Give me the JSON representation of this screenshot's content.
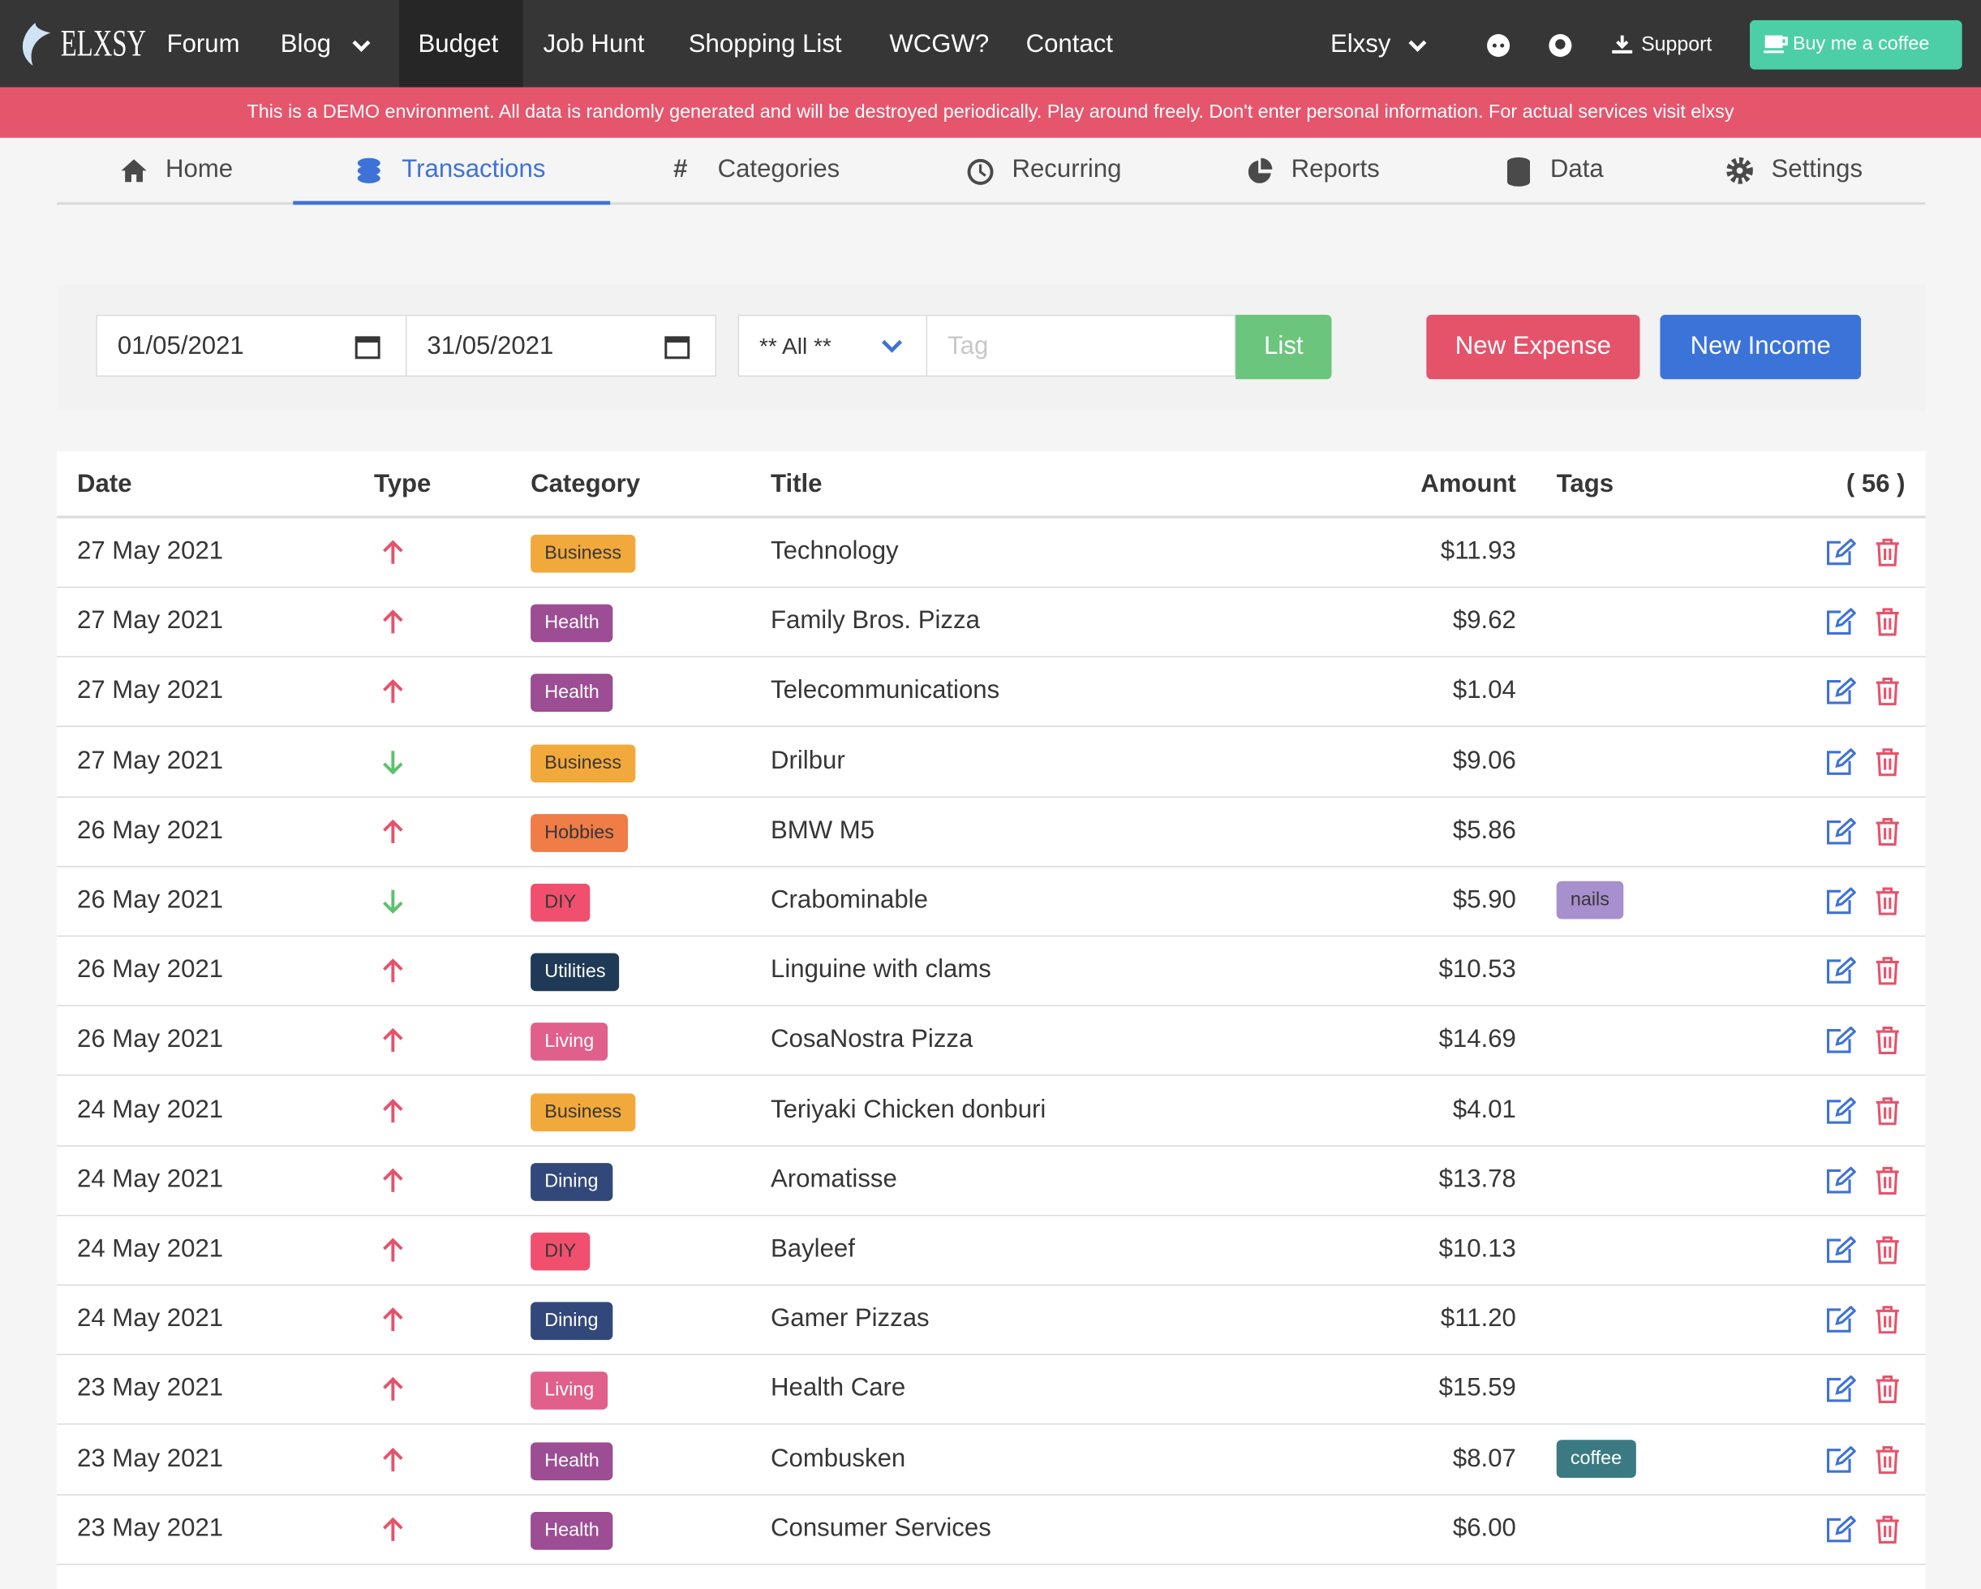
{
  "navbar": {
    "brand": "ELXSY",
    "items": [
      "Forum",
      "Blog",
      "Budget",
      "Job Hunt",
      "Shopping List",
      "WCGW?",
      "Contact"
    ],
    "user": "Elxsy",
    "support": "Support",
    "coffee": "Buy me a coffee"
  },
  "banner": "This is a DEMO environment. All data is randomly generated and will be destroyed periodically. Play around freely. Don't enter personal information. For actual services visit elxsy",
  "tabs": [
    "Home",
    "Transactions",
    "Categories",
    "Recurring",
    "Reports",
    "Data",
    "Settings"
  ],
  "filters": {
    "from": "01/05/2021",
    "to": "31/05/2021",
    "type": "** All **",
    "tag_placeholder": "Tag",
    "list": "List",
    "new_expense": "New Expense",
    "new_income": "New Income"
  },
  "table": {
    "headers": [
      "Date",
      "Type",
      "Category",
      "Title",
      "Amount",
      "Tags"
    ],
    "count": "( 56 )",
    "rows": [
      {
        "date": "27 May 2021",
        "category": "Business",
        "category_color": "#f2a93b",
        "title": "Technology",
        "amount": "$11.93",
        "tags": []
      },
      {
        "date": "27 May 2021",
        "category": "Health",
        "category_color": "#9c4d93",
        "title": "Family Bros. Pizza",
        "amount": "$9.62",
        "tags": []
      },
      {
        "date": "27 May 2021",
        "category": "Health",
        "category_color": "#9c4d93",
        "title": "Telecommunications",
        "amount": "$1.04",
        "tags": []
      },
      {
        "date": "27 May 2021",
        "category": "Business",
        "category_color": "#f2a93b",
        "title": "Drilbur",
        "amount": "$9.06",
        "tags": []
      },
      {
        "date": "26 May 2021",
        "category": "Hobbies",
        "category_color": "#f07c48",
        "title": "BMW M5",
        "amount": "$5.86",
        "tags": []
      },
      {
        "date": "26 May 2021",
        "category": "DIY",
        "category_color": "#f0506e",
        "title": "Crabominable",
        "amount": "$5.90",
        "tags": [
          {
            "label": "nails",
            "color": "#a88fcd"
          }
        ]
      },
      {
        "date": "26 May 2021",
        "category": "Utilities",
        "category_color": "#1e3a56",
        "title": "Linguine with clams",
        "amount": "$10.53",
        "tags": []
      },
      {
        "date": "26 May 2021",
        "category": "Living",
        "category_color": "#e0608b",
        "title": "CosaNostra Pizza",
        "amount": "$14.69",
        "tags": []
      },
      {
        "date": "24 May 2021",
        "category": "Business",
        "category_color": "#f2a93b",
        "title": "Teriyaki Chicken donburi",
        "amount": "$4.01",
        "tags": []
      },
      {
        "date": "24 May 2021",
        "category": "Dining",
        "category_color": "#33487a",
        "title": "Aromatisse",
        "amount": "$13.78",
        "tags": []
      },
      {
        "date": "24 May 2021",
        "category": "DIY",
        "category_color": "#f0506e",
        "title": "Bayleef",
        "amount": "$10.13",
        "tags": []
      },
      {
        "date": "24 May 2021",
        "category": "Dining",
        "category_color": "#33487a",
        "title": "Gamer Pizzas",
        "amount": "$11.20",
        "tags": []
      },
      {
        "date": "23 May 2021",
        "category": "Living",
        "category_color": "#e0608b",
        "title": "Health Care",
        "amount": "$15.59",
        "tags": []
      },
      {
        "date": "23 May 2021",
        "category": "Health",
        "category_color": "#9c4d93",
        "title": "Combusken",
        "amount": "$8.07",
        "tags": [
          {
            "label": "coffee",
            "color": "#3b7a82"
          }
        ]
      },
      {
        "date": "23 May 2021",
        "category": "Health",
        "category_color": "#9c4d93",
        "title": "Consumer Services",
        "amount": "$6.00",
        "tags": []
      }
    ]
  }
}
